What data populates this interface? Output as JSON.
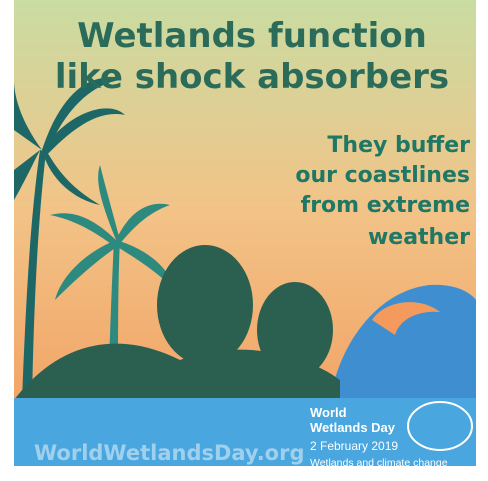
{
  "poster": {
    "title": [
      "Wetlands function",
      "like shock absorbers"
    ],
    "message": [
      "They buffer",
      "our coastlines",
      "from extreme",
      "weather"
    ],
    "website": "WorldWetlandsDay.org",
    "logo": {
      "name": [
        "World",
        "Wetlands Day"
      ],
      "date": "2 February 2019",
      "theme": "Wetlands and climate change"
    }
  }
}
